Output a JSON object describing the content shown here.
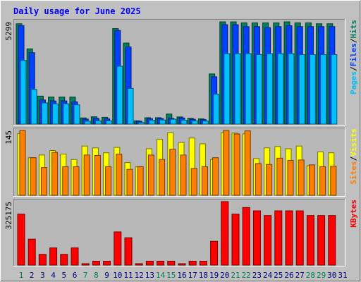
{
  "title": "Daily usage for June 2025",
  "colors": {
    "background": "#c0c0c0",
    "panel": "#b8b8b8",
    "title": "#0000ff",
    "hits": "#00805c",
    "files": "#0040ff",
    "pages": "#00c0ff",
    "visits": "#ffff00",
    "sites": "#ff8000",
    "kbytes": "#ff0000",
    "weekend_day": "#00805c",
    "weekday": "#000080"
  },
  "chart_data": [
    {
      "type": "bar",
      "name": "hits-files-pages",
      "categories": [
        "1",
        "2",
        "3",
        "4",
        "5",
        "6",
        "7",
        "8",
        "9",
        "10",
        "11",
        "12",
        "13",
        "14",
        "15",
        "16",
        "17",
        "18",
        "19",
        "20",
        "21",
        "22",
        "23",
        "24",
        "25",
        "26",
        "27",
        "28",
        "29",
        "30",
        "31"
      ],
      "weekend_days": [
        "1",
        "7",
        "8",
        "14",
        "15",
        "21",
        "22",
        "28",
        "29"
      ],
      "ymax_label": "5299",
      "ylim": [
        0,
        5299
      ],
      "ylabel_parts": [
        "Pages",
        "/",
        "Files",
        "/",
        "Hits"
      ],
      "series": [
        {
          "name": "Hits",
          "values": [
            5200,
            3900,
            1450,
            1400,
            1400,
            1400,
            320,
            380,
            350,
            4950,
            4200,
            170,
            330,
            330,
            520,
            370,
            300,
            270,
            2600,
            5299,
            5299,
            5250,
            5250,
            5250,
            5250,
            5299,
            5250,
            5250,
            5200,
            5200,
            0
          ]
        },
        {
          "name": "Files",
          "values": [
            5100,
            3700,
            1250,
            1200,
            1200,
            1150,
            260,
            300,
            270,
            4850,
            4000,
            150,
            280,
            290,
            300,
            320,
            250,
            230,
            2450,
            5150,
            5150,
            5050,
            5050,
            5000,
            5050,
            5100,
            5050,
            5050,
            5050,
            5050,
            0
          ]
        },
        {
          "name": "Pages",
          "values": [
            3300,
            1800,
            1100,
            1050,
            1050,
            1000,
            150,
            170,
            170,
            3000,
            1850,
            80,
            200,
            210,
            250,
            200,
            170,
            160,
            1550,
            3650,
            3650,
            3650,
            3600,
            3650,
            3650,
            3650,
            3600,
            3600,
            3600,
            3600,
            0
          ]
        }
      ]
    },
    {
      "type": "bar",
      "name": "visits-sites",
      "categories": [
        "1",
        "2",
        "3",
        "4",
        "5",
        "6",
        "7",
        "8",
        "9",
        "10",
        "11",
        "12",
        "13",
        "14",
        "15",
        "16",
        "17",
        "18",
        "19",
        "20",
        "21",
        "22",
        "23",
        "24",
        "25",
        "26",
        "27",
        "28",
        "29",
        "30",
        "31"
      ],
      "ymax_label": "145",
      "ylim": [
        0,
        145
      ],
      "ylabel_parts": [
        "Sites",
        "/",
        "Visits"
      ],
      "series": [
        {
          "name": "Visits",
          "values": [
            138,
            84,
            90,
            100,
            92,
            80,
            110,
            106,
            95,
            107,
            73,
            64,
            104,
            125,
            140,
            118,
            128,
            115,
            80,
            140,
            139,
            137,
            82,
            106,
            109,
            104,
            110,
            66,
            97,
            95,
            0
          ]
        },
        {
          "name": "Sites",
          "values": [
            145,
            84,
            62,
            96,
            64,
            64,
            90,
            89,
            64,
            92,
            58,
            64,
            90,
            80,
            103,
            90,
            60,
            64,
            84,
            145,
            137,
            144,
            71,
            69,
            83,
            78,
            79,
            68,
            64,
            65,
            0
          ]
        }
      ]
    },
    {
      "type": "bar",
      "name": "kbytes",
      "categories": [
        "1",
        "2",
        "3",
        "4",
        "5",
        "6",
        "7",
        "8",
        "9",
        "10",
        "11",
        "12",
        "13",
        "14",
        "15",
        "16",
        "17",
        "18",
        "19",
        "20",
        "21",
        "22",
        "23",
        "24",
        "25",
        "26",
        "27",
        "28",
        "29",
        "30",
        "31"
      ],
      "ymax_label": "325175",
      "ylim": [
        0,
        325175
      ],
      "ylabel_parts": [
        "KBytes"
      ],
      "series": [
        {
          "name": "KBytes",
          "values": [
            261000,
            133000,
            55000,
            88000,
            55000,
            88000,
            5000,
            20000,
            20000,
            170000,
            140000,
            5000,
            20000,
            20000,
            20000,
            5000,
            20000,
            20000,
            122000,
            325175,
            261000,
            295000,
            278000,
            254000,
            278000,
            278000,
            278000,
            254000,
            254000,
            254000,
            0
          ]
        }
      ]
    }
  ]
}
